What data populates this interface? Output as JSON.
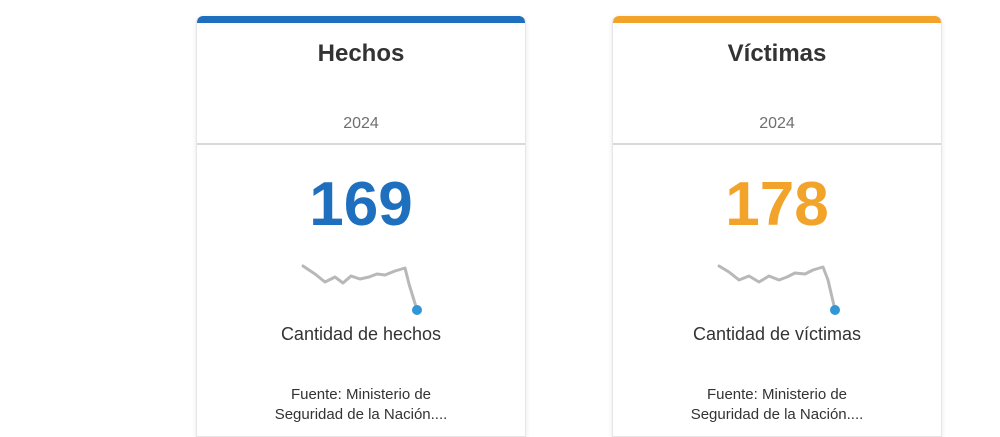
{
  "colors": {
    "hechos_accent": "#1f6fbf",
    "victimas_accent": "#f2a32a",
    "sparkline_line": "#b8b8b8",
    "sparkline_dot": "#2f96d8"
  },
  "cards": [
    {
      "title": "Hechos",
      "year": "2024",
      "value": "169",
      "label": "Cantidad de hechos",
      "source_line1": "Fuente: Ministerio de",
      "source_line2": "Seguridad de la Nación...."
    },
    {
      "title": "Víctimas",
      "year": "2024",
      "value": "178",
      "label": "Cantidad de víctimas",
      "source_line1": "Fuente: Ministerio de",
      "source_line2": "Seguridad de la Nación...."
    }
  ]
}
